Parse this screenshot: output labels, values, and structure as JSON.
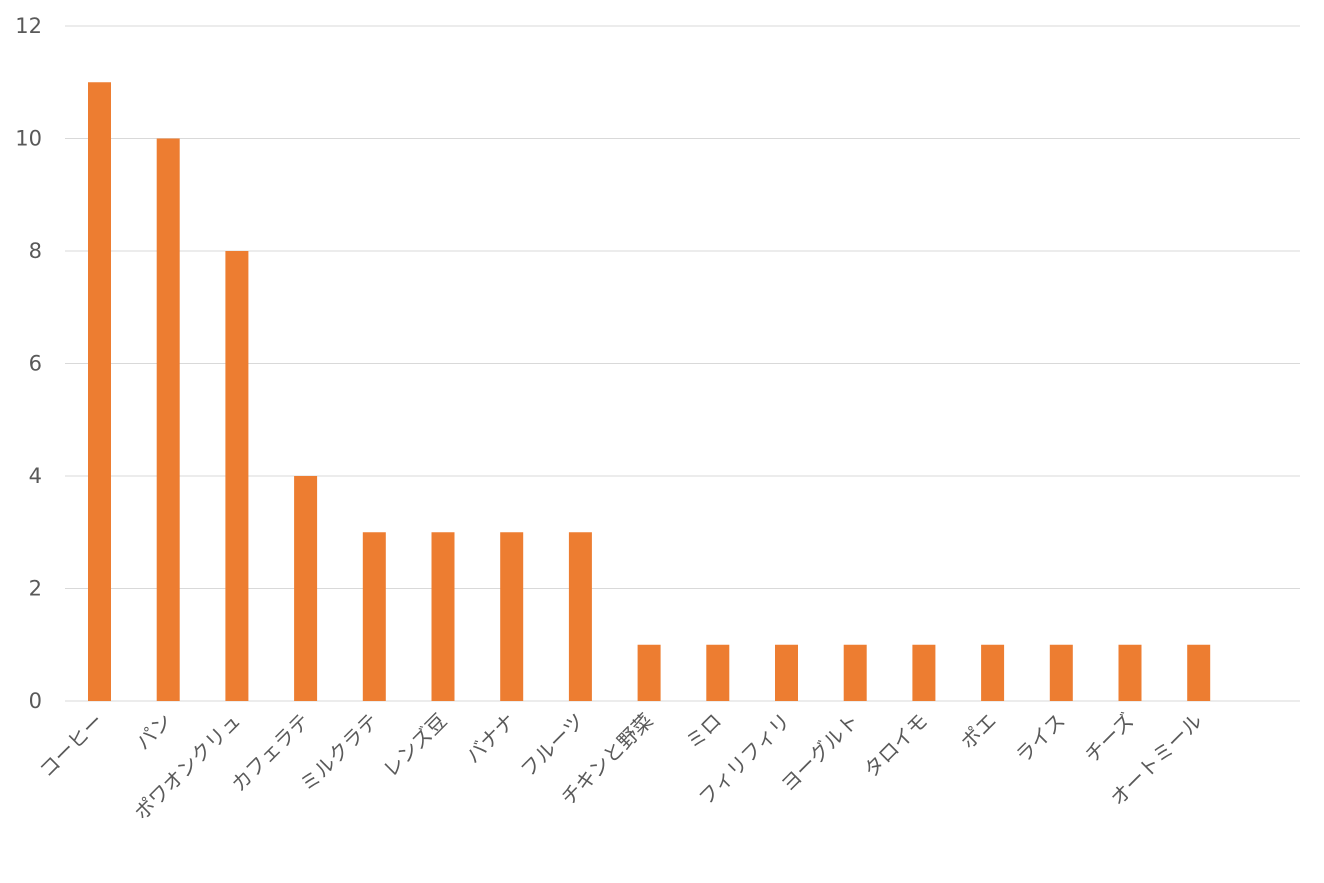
{
  "chart_data": {
    "type": "bar",
    "title": "",
    "xlabel": "",
    "ylabel": "",
    "ylim": [
      0,
      12
    ],
    "yticks": [
      0,
      2,
      4,
      6,
      8,
      10,
      12
    ],
    "grid": true,
    "legend": "none",
    "bar_color": "#ed7d31",
    "categories": [
      "コーヒー",
      "パン",
      "ポワオンクリュ",
      "カフェラテ",
      "ミルクラテ",
      "レンズ豆",
      "バナナ",
      "フルーツ",
      "チキンと野菜",
      "ミロ",
      "フィリフィリ",
      "ヨーグルト",
      "タロイモ",
      "ポエ",
      "ライス",
      "チーズ",
      "オートミール"
    ],
    "values": [
      11,
      10,
      8,
      4,
      3,
      3,
      3,
      3,
      1,
      1,
      1,
      1,
      1,
      1,
      1,
      1,
      1
    ]
  }
}
